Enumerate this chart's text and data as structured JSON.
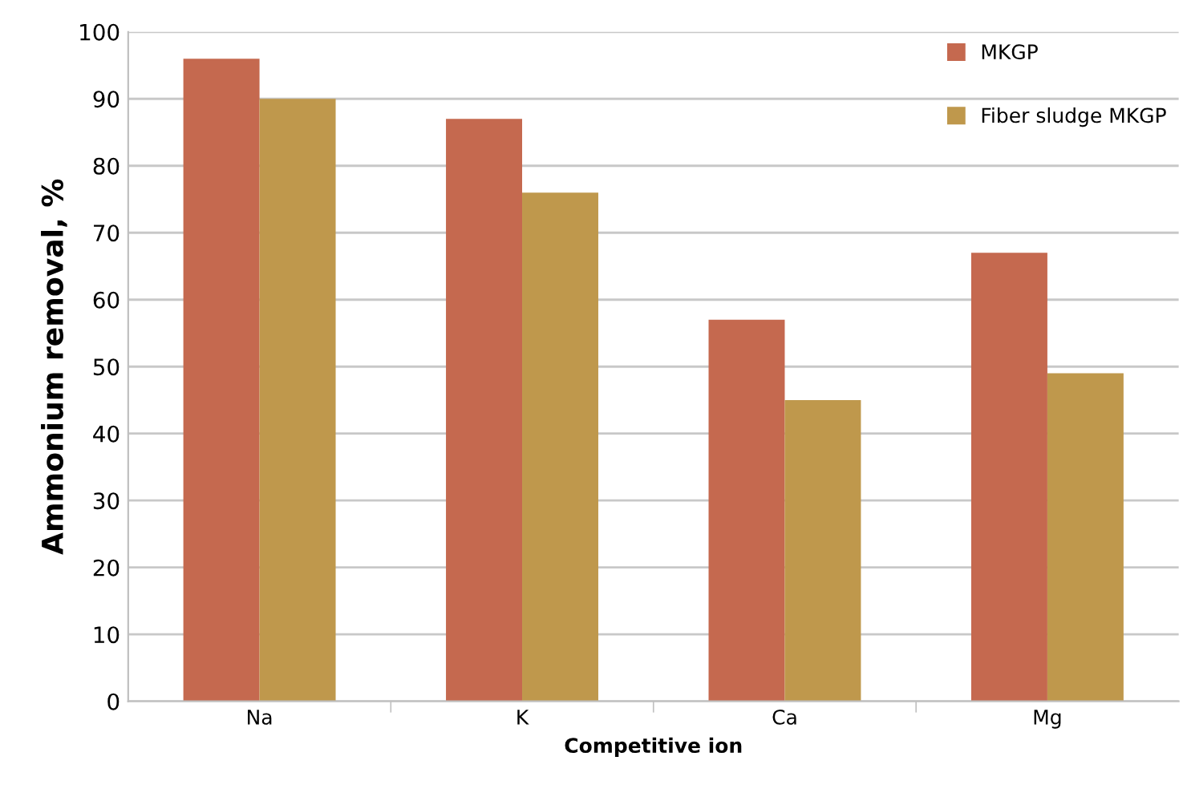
{
  "chart_data": {
    "type": "bar",
    "xlabel": "Competitive ion",
    "ylabel": "Ammonium removal, %",
    "categories": [
      "Na",
      "K",
      "Ca",
      "Mg"
    ],
    "series": [
      {
        "name": "MKGP",
        "color": "#c5694f",
        "values": [
          96,
          87,
          57,
          67
        ]
      },
      {
        "name": "Fiber sludge MKGP",
        "color": "#bf984c",
        "values": [
          90,
          76,
          45,
          49
        ]
      }
    ],
    "ylim": [
      0,
      100
    ],
    "yticks": [
      0,
      10,
      20,
      30,
      40,
      50,
      60,
      70,
      80,
      90,
      100
    ],
    "grid": "y",
    "legend": "top right"
  }
}
